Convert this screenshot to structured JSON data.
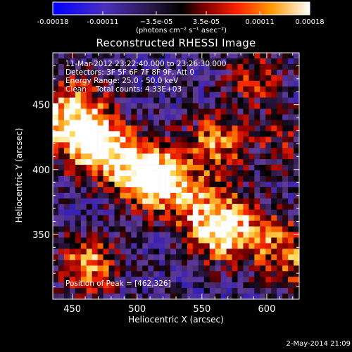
{
  "colorbar": {
    "tick_labels": [
      "-0.00018",
      "-0.00011",
      "−3.5e-05",
      "3.5e-05",
      "0.00011",
      "0.00018"
    ],
    "tick_values": [
      -0.00018,
      -0.00011,
      -3.5e-05,
      3.5e-05,
      0.00011,
      0.00018
    ],
    "range": [
      -0.00018,
      0.00018
    ],
    "unit_label": "(photons cm⁻² s⁻¹ asec⁻²)",
    "colors": [
      "#0000ff",
      "#5a2fb0",
      "#000000",
      "#8a0000",
      "#ff2000",
      "#ff9a00",
      "#ffffff"
    ]
  },
  "chart_data": {
    "type": "heatmap",
    "title": "Reconstructed RHESSI Image",
    "xlabel": "Heliocentric X (arcsec)",
    "ylabel": "Heliocentric Y (arcsec)",
    "xlim": [
      435,
      625
    ],
    "ylim": [
      300,
      490
    ],
    "x_ticks": [
      450,
      500,
      550,
      600
    ],
    "y_ticks": [
      350,
      400,
      450
    ],
    "annotations": [
      "11-Mar-2012 23:22:40.000 to 23:26:30.000",
      "Detectors: 3F 5F 6F 7F 8F 9F, Att 0",
      "Energy Range: 25.0 - 50.0 keV",
      "Clean    Total counts: 4.33E+03"
    ],
    "peak_label": "Position of Peak = [462,326]",
    "peak_position": [
      462,
      326
    ],
    "bright_regions": [
      {
        "x": 510,
        "y": 395,
        "level": 0.95
      },
      {
        "x": 470,
        "y": 420,
        "level": 0.8
      },
      {
        "x": 455,
        "y": 450,
        "level": 0.7
      },
      {
        "x": 560,
        "y": 420,
        "level": 0.9
      },
      {
        "x": 560,
        "y": 350,
        "level": 0.8
      },
      {
        "x": 462,
        "y": 326,
        "level": 1.0
      },
      {
        "x": 590,
        "y": 470,
        "level": 0.6
      },
      {
        "x": 610,
        "y": 420,
        "level": 0.5
      }
    ]
  },
  "footer": {
    "date": "2-May-2014 21:09"
  }
}
